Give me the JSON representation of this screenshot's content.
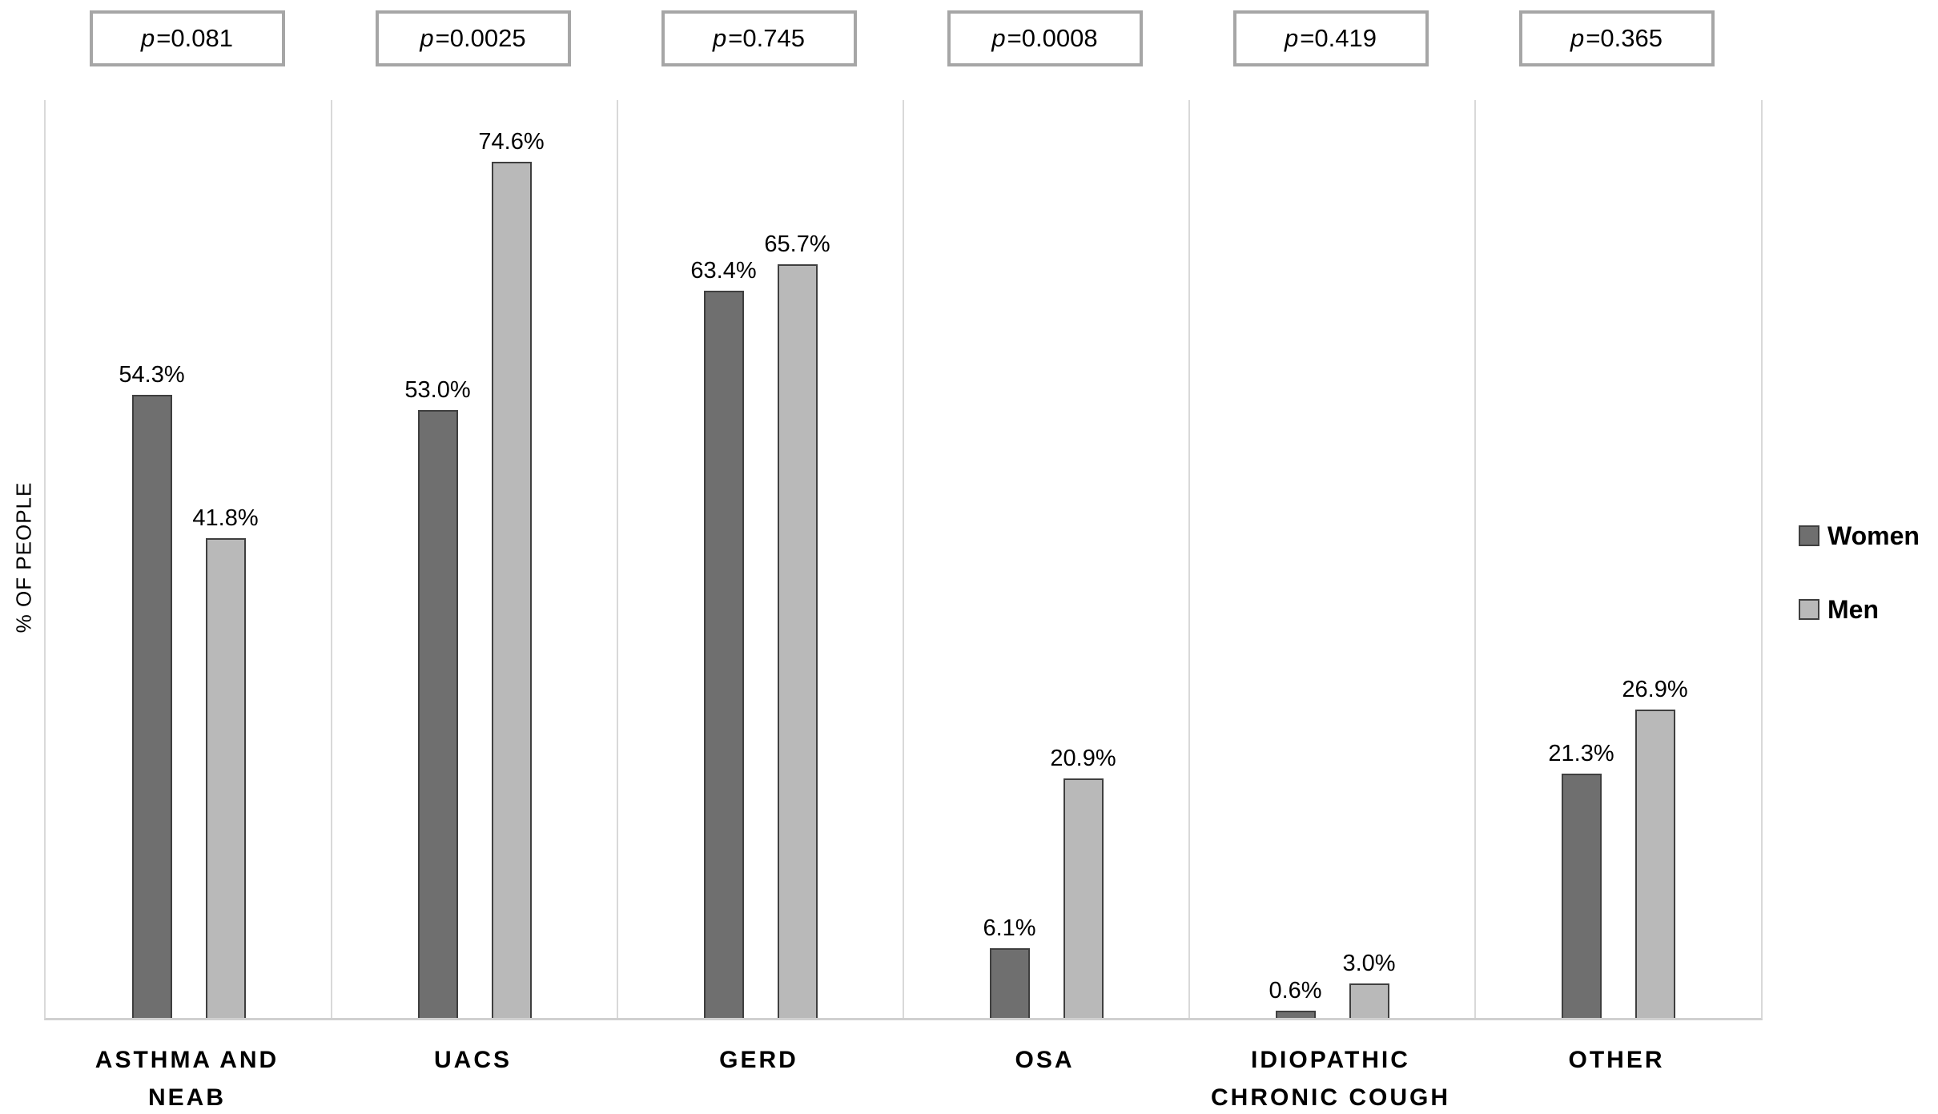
{
  "chart_data": {
    "type": "bar",
    "title": "",
    "xlabel": "",
    "ylabel": "% OF PEOPLE",
    "ylim": [
      0,
      80
    ],
    "grid": "vertical category separators only",
    "legend_position": "right",
    "p_symbol": "p",
    "p_equals": "=",
    "p_values": [
      "0.081",
      "0.0025",
      "0.745",
      "0.0008",
      "0.419",
      "0.365"
    ],
    "categories": [
      "ASTHMA AND\nNEAB",
      "UACS",
      "GERD",
      "OSA",
      "IDIOPATHIC\nCHRONIC COUGH",
      "OTHER"
    ],
    "series": [
      {
        "name": "Women",
        "color": "#6f6f6f",
        "values": [
          54.3,
          53.0,
          63.4,
          6.1,
          0.6,
          21.3
        ],
        "labels": [
          "54.3%",
          "53.0%",
          "63.4%",
          "6.1%",
          "0.6%",
          "21.3%"
        ]
      },
      {
        "name": "Men",
        "color": "#b9b9b9",
        "values": [
          41.8,
          74.6,
          65.7,
          20.9,
          3.0,
          26.9
        ],
        "labels": [
          "41.8%",
          "74.6%",
          "65.7%",
          "20.9%",
          "3.0%",
          "26.9%"
        ]
      }
    ],
    "colors": {
      "bar_border": "#3f3f3f",
      "p_box_border": "#a6a6a6",
      "gridline": "#d9d9d9",
      "axis_line": "#d0d0d0",
      "text": "#000000"
    }
  }
}
